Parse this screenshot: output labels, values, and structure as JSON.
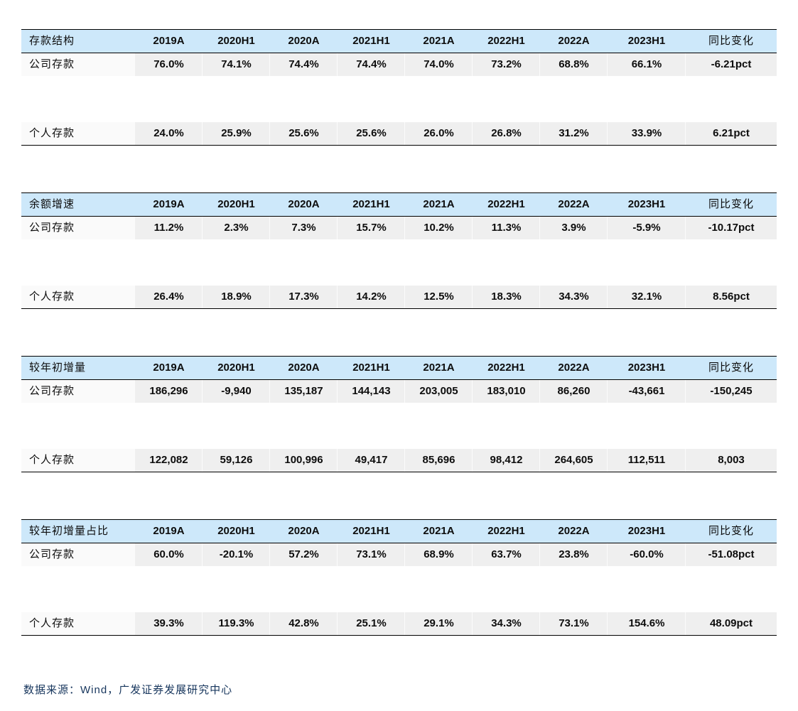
{
  "columns": [
    "2019A",
    "2020H1",
    "2020A",
    "2021H1",
    "2021A",
    "2022H1",
    "2022A",
    "2023H1",
    "同比变化"
  ],
  "tables": [
    {
      "title": "存款结构",
      "rows": [
        {
          "label": "公司存款",
          "values": [
            "76.0%",
            "74.1%",
            "74.4%",
            "74.4%",
            "74.0%",
            "73.2%",
            "68.8%",
            "66.1%",
            "-6.21pct"
          ]
        },
        {
          "label": "个人存款",
          "values": [
            "24.0%",
            "25.9%",
            "25.6%",
            "25.6%",
            "26.0%",
            "26.8%",
            "31.2%",
            "33.9%",
            "6.21pct"
          ]
        }
      ]
    },
    {
      "title": "余额增速",
      "rows": [
        {
          "label": "公司存款",
          "values": [
            "11.2%",
            "2.3%",
            "7.3%",
            "15.7%",
            "10.2%",
            "11.3%",
            "3.9%",
            "-5.9%",
            "-10.17pct"
          ]
        },
        {
          "label": "个人存款",
          "values": [
            "26.4%",
            "18.9%",
            "17.3%",
            "14.2%",
            "12.5%",
            "18.3%",
            "34.3%",
            "32.1%",
            "8.56pct"
          ]
        }
      ]
    },
    {
      "title": "较年初增量",
      "rows": [
        {
          "label": "公司存款",
          "values": [
            "186,296",
            "-9,940",
            "135,187",
            "144,143",
            "203,005",
            "183,010",
            "86,260",
            "-43,661",
            "-150,245"
          ]
        },
        {
          "label": "个人存款",
          "values": [
            "122,082",
            "59,126",
            "100,996",
            "49,417",
            "85,696",
            "98,412",
            "264,605",
            "112,511",
            "8,003"
          ]
        }
      ]
    },
    {
      "title": "较年初增量占比",
      "rows": [
        {
          "label": "公司存款",
          "values": [
            "60.0%",
            "-20.1%",
            "57.2%",
            "73.1%",
            "68.9%",
            "63.7%",
            "23.8%",
            "-60.0%",
            "-51.08pct"
          ]
        },
        {
          "label": "个人存款",
          "values": [
            "39.3%",
            "119.3%",
            "42.8%",
            "25.1%",
            "29.1%",
            "34.3%",
            "73.1%",
            "154.6%",
            "48.09pct"
          ]
        }
      ]
    }
  ],
  "footer": {
    "text": "数据来源：Wind，广发证券发展研究中心"
  },
  "colors": {
    "header_bg": "#cde8fa",
    "row_bg": "#efefef",
    "label_bg": "#fafafa",
    "border": "#000000",
    "footer_text": "#17365d"
  },
  "layout": {
    "table_top_start": 41,
    "table_vertical_step": 230
  }
}
